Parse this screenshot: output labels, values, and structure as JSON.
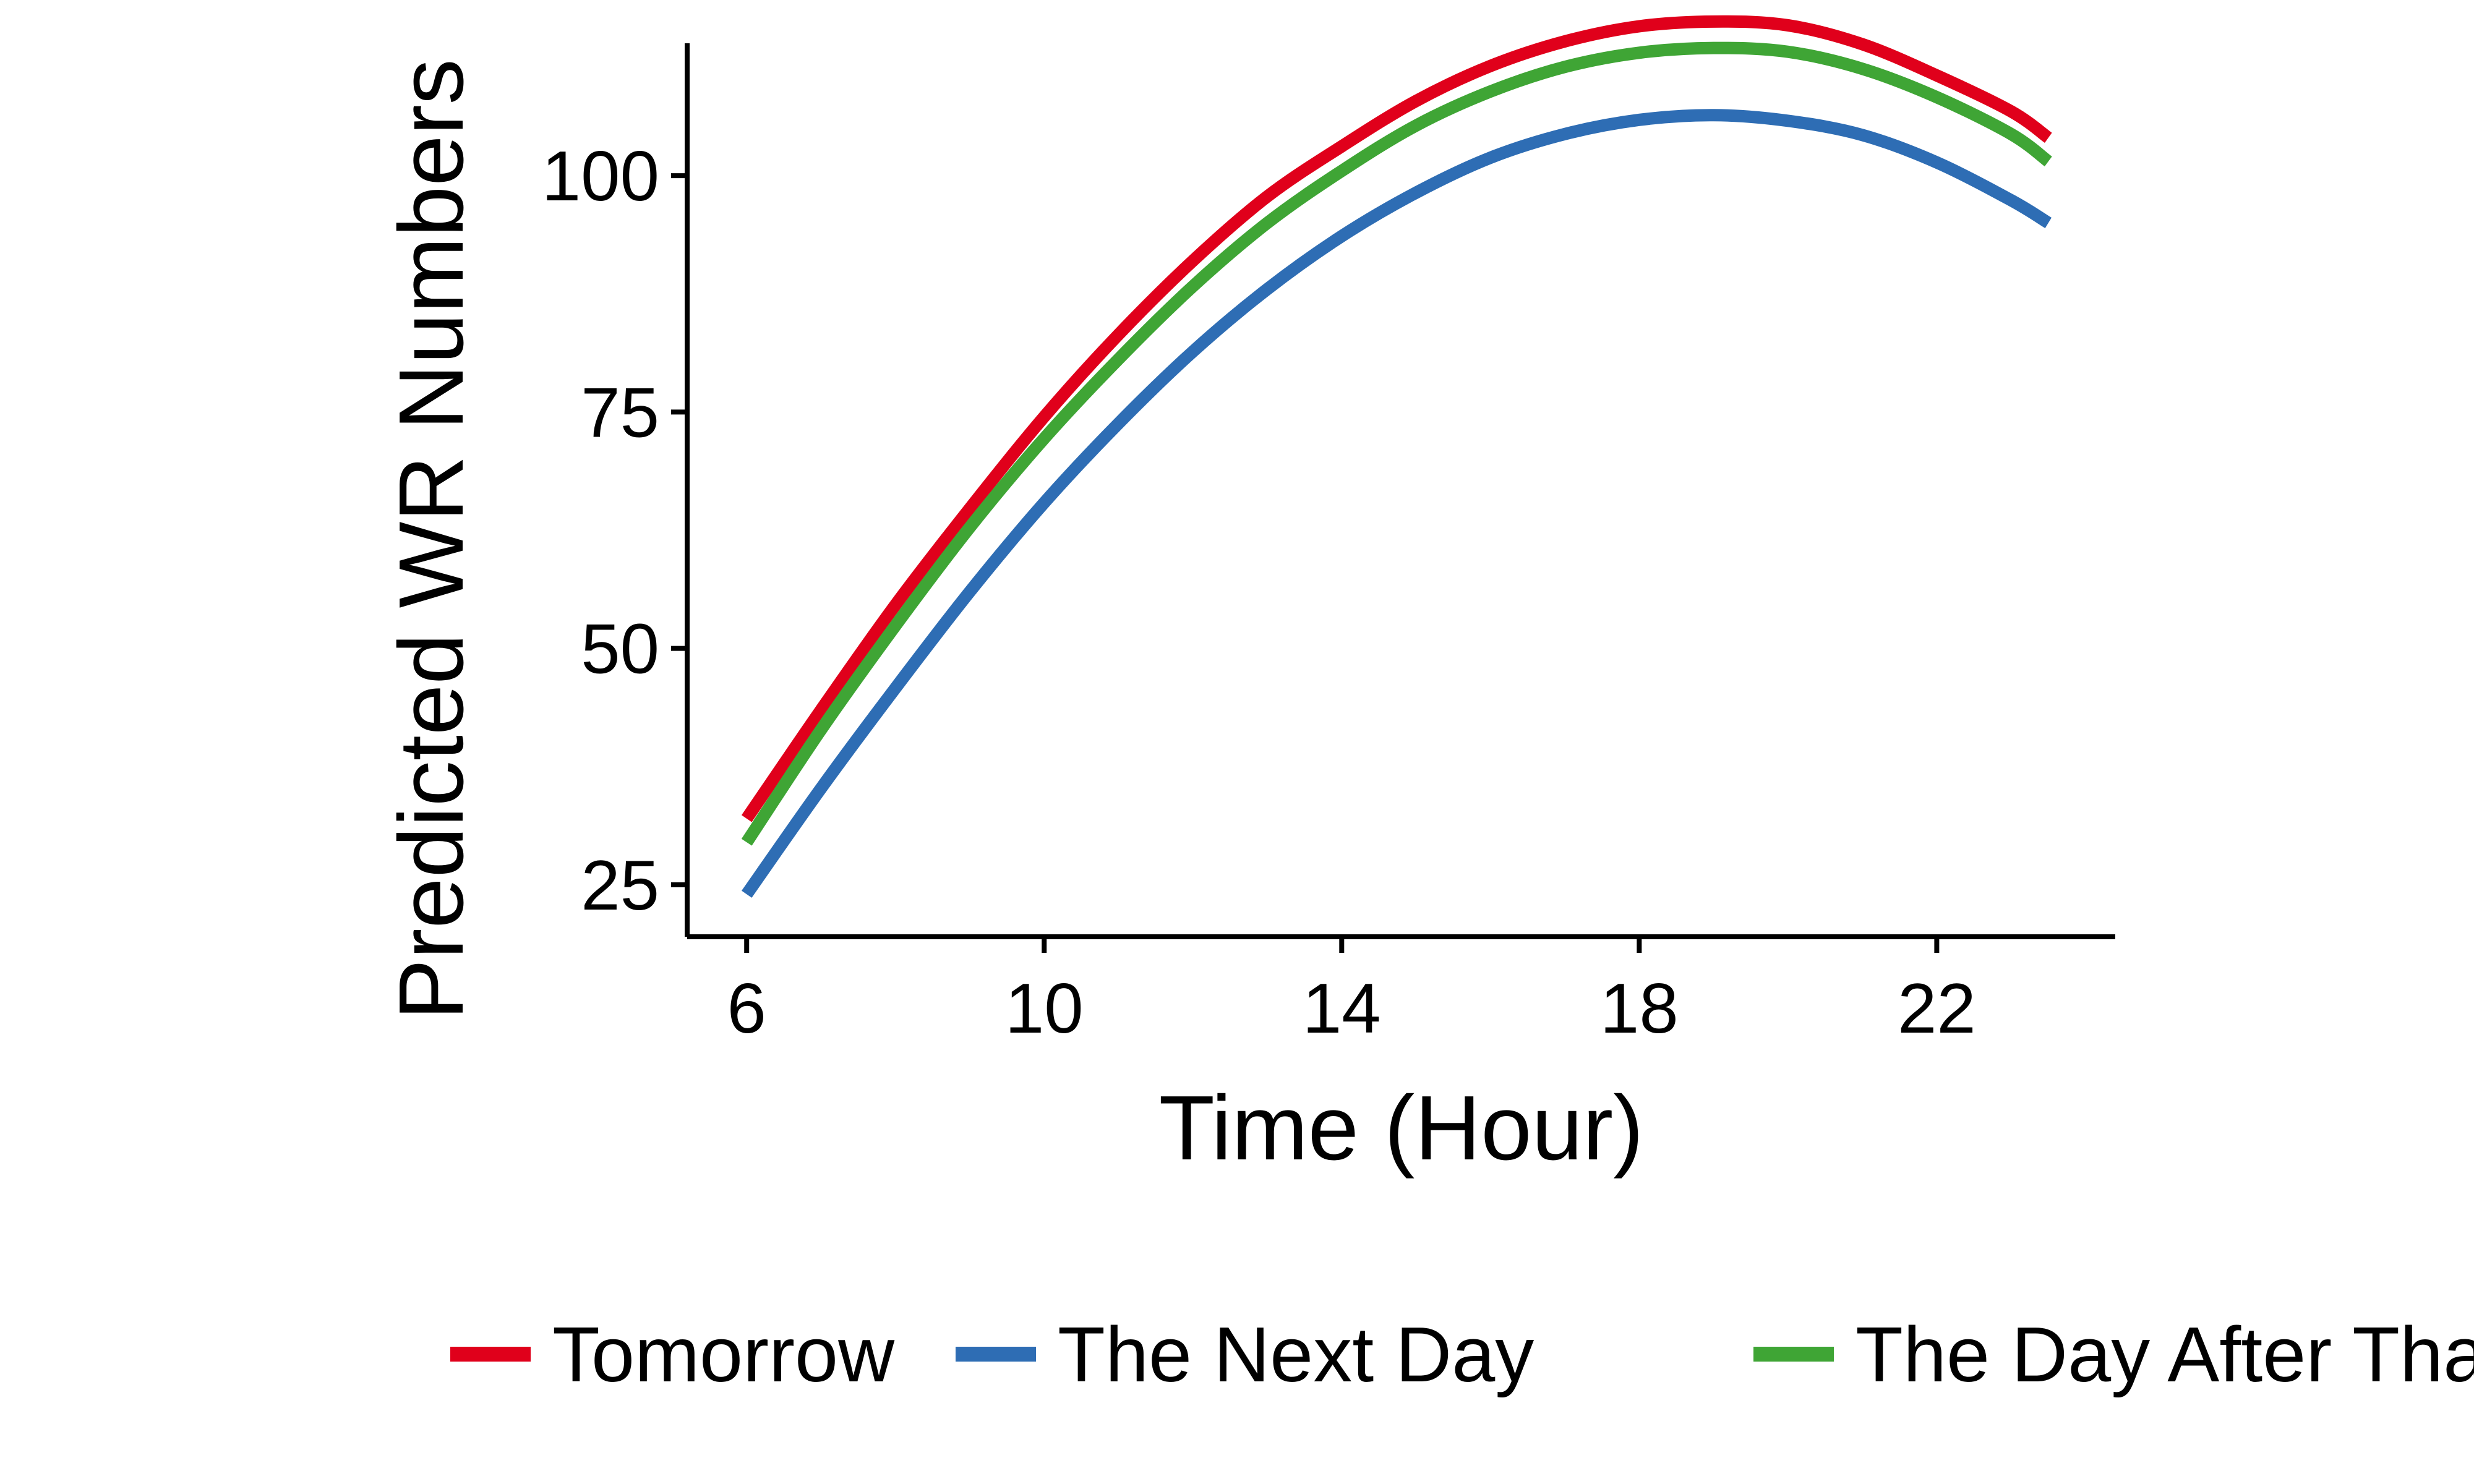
{
  "chart_data": {
    "type": "line",
    "title": "",
    "xlabel": "Time (Hour)",
    "ylabel": "Predicted WR Numbers",
    "xlim": [
      5.2,
      24.4
    ],
    "ylim": [
      19.5,
      114
    ],
    "x_ticks": [
      6,
      10,
      14,
      18,
      22
    ],
    "y_ticks": [
      25,
      50,
      75,
      100
    ],
    "grid": false,
    "legend_position": "bottom",
    "series": [
      {
        "name": "Tomorrow",
        "color": "#e0001b",
        "x": [
          6,
          7,
          8,
          9,
          10,
          11,
          12,
          13,
          14,
          15,
          16,
          17,
          18,
          19,
          20,
          21,
          22,
          23,
          23.5
        ],
        "y": [
          32,
          43.5,
          54.6,
          64.8,
          74.5,
          83.2,
          91,
          97.8,
          103.1,
          107.9,
          111.6,
          114.2,
          115.8,
          116.3,
          115.9,
          113.9,
          110.6,
          106.8,
          104
        ]
      },
      {
        "name": "The Next Day",
        "color": "#2e6db4",
        "x": [
          6,
          7,
          8,
          9,
          10,
          11,
          12,
          13,
          14,
          15,
          16,
          17,
          18,
          19,
          20,
          21,
          22,
          23,
          23.5
        ],
        "y": [
          24,
          35.2,
          45.8,
          56,
          65.4,
          73.8,
          81.4,
          88,
          93.6,
          98.2,
          101.9,
          104.4,
          105.9,
          106.4,
          105.8,
          104.3,
          101.4,
          97.4,
          95
        ]
      },
      {
        "name": "The Day After That",
        "color": "#3fa535",
        "x": [
          6,
          7,
          8,
          9,
          10,
          11,
          12,
          13,
          14,
          15,
          16,
          17,
          18,
          19,
          20,
          21,
          22,
          23,
          23.5
        ],
        "y": [
          29.5,
          41.4,
          52.4,
          62.8,
          72.2,
          80.6,
          88.3,
          95,
          100.5,
          105.3,
          108.9,
          111.5,
          113,
          113.5,
          113.1,
          111.3,
          108.3,
          104.4,
          101.5
        ]
      }
    ]
  }
}
